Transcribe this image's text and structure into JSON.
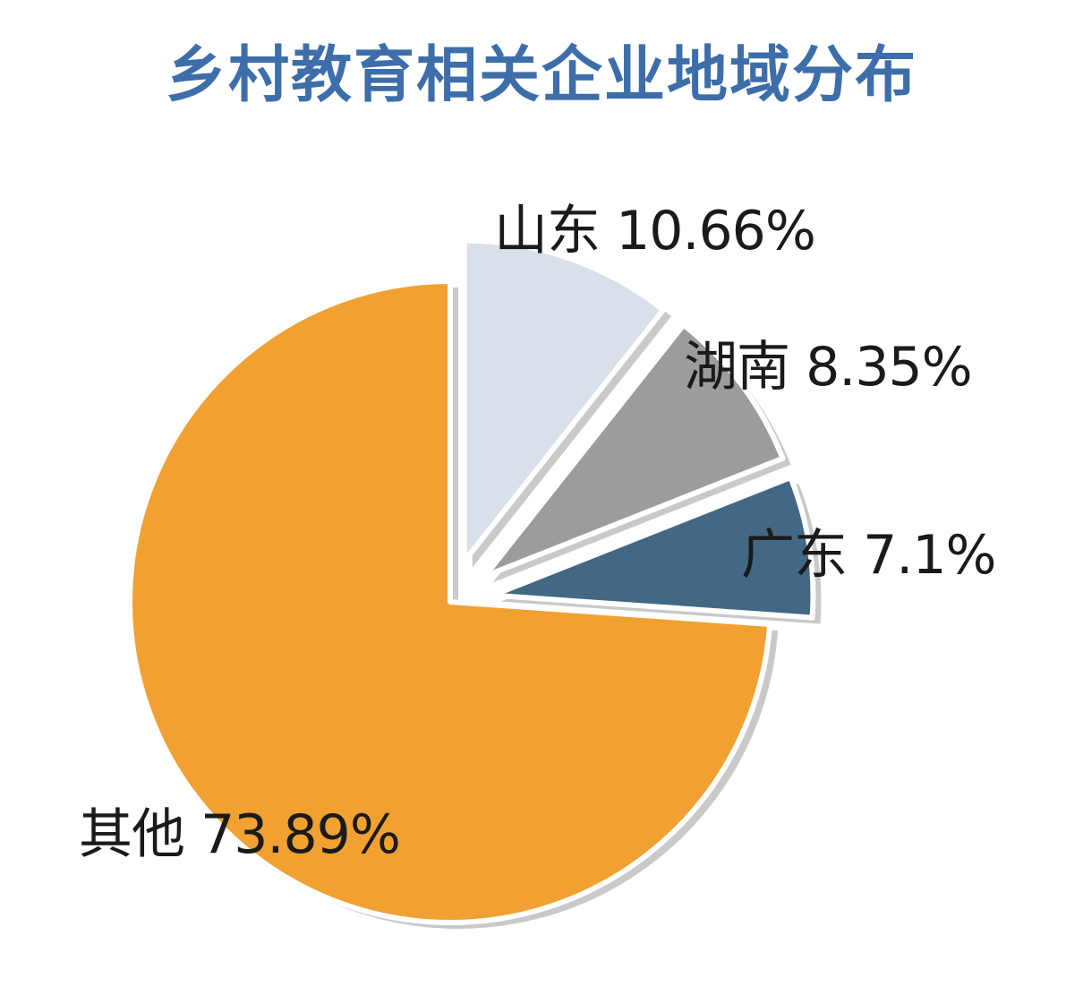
{
  "chart_data": {
    "type": "pie",
    "title": "乡村教育相关企业地域分布",
    "slices": [
      {
        "name": "其他",
        "value": 73.89,
        "label": "其他 73.89%",
        "color": "#f0a132",
        "exploded": false
      },
      {
        "name": "山东",
        "value": 10.66,
        "label": "山东 10.66%",
        "color": "#d8e1ea",
        "exploded": true
      },
      {
        "name": "湖南",
        "value": 8.35,
        "label": "湖南 8.35%",
        "color": "#9c9c9c",
        "exploded": true
      },
      {
        "name": "广东",
        "value": 7.1,
        "label": "广东 7.1%",
        "color": "#426883",
        "exploded": true
      }
    ]
  }
}
